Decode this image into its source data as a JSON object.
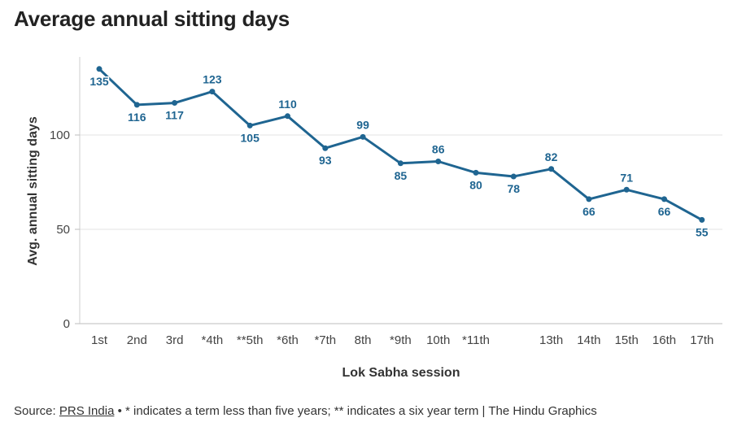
{
  "chart_data": {
    "type": "line",
    "title": "Average annual sitting days",
    "xlabel": "Lok Sabha session",
    "ylabel": "Avg. annual sitting days",
    "ylim": [
      0,
      140
    ],
    "yticks": [
      0,
      50,
      100
    ],
    "grid": true,
    "categories": [
      "1st",
      "2nd",
      "3rd",
      "*4th",
      "**5th",
      "*6th",
      "*7th",
      "8th",
      "*9th",
      "10th",
      "*11th",
      "",
      "13th",
      "14th",
      "15th",
      "16th",
      "17th"
    ],
    "series": [
      {
        "values": [
          135,
          116,
          117,
          123,
          105,
          110,
          93,
          99,
          85,
          86,
          80,
          78,
          82,
          66,
          71,
          66,
          55
        ]
      }
    ],
    "line_color": "#1f6591"
  },
  "footer": {
    "source_label": "Source:",
    "source_link": "PRS India",
    "note": "• * indicates a term less than five years; ** indicates a six year term | The Hindu Graphics"
  }
}
